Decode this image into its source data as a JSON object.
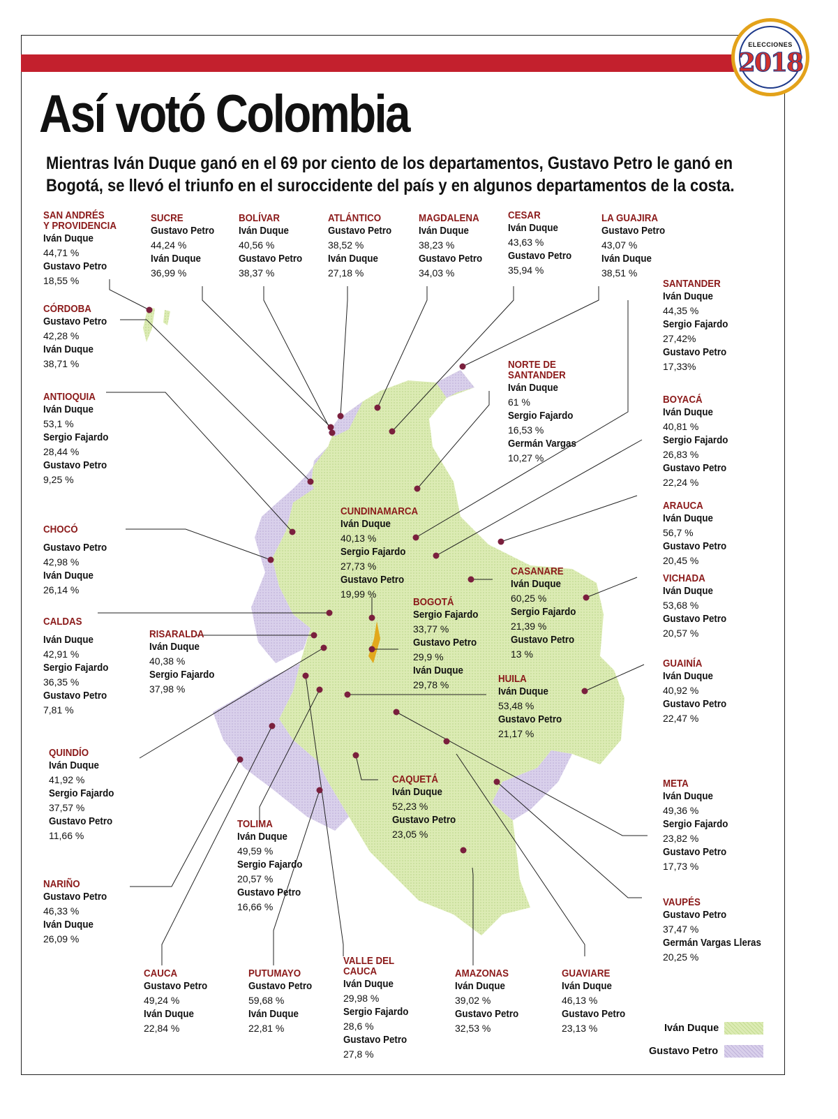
{
  "badge": {
    "label": "ELECCIONES",
    "year": "2018"
  },
  "title": "Así votó Colombia",
  "subtitle": "Mientras Iván Duque ganó en el 69 por ciento de los departamentos, Gustavo Petro le ganó en Bogotá, se llevó el triunfo en el suroccidente del país y en algunos departamentos de la costa.",
  "colors": {
    "duque": "#dcebb4",
    "petro": "#d9d0eb",
    "bogota": "#e2a81c",
    "title_red": "#8b1a1a",
    "bar_red": "#c3202d"
  },
  "legend": [
    {
      "name": "Iván Duque",
      "color": "#dcebb4"
    },
    {
      "name": "Gustavo Petro",
      "color": "#d9d0eb"
    }
  ],
  "departments": [
    {
      "name": "SAN ANDRÉS\nY PROVIDENCIA",
      "winner": "duque",
      "results": [
        {
          "c": "Iván Duque",
          "p": "44,71 %"
        },
        {
          "c": "Gustavo Petro",
          "p": "18,55 %"
        }
      ]
    },
    {
      "name": "SUCRE",
      "winner": "petro",
      "results": [
        {
          "c": "Gustavo Petro",
          "p": "44,24 %"
        },
        {
          "c": "Iván Duque",
          "p": "36,99 %"
        }
      ]
    },
    {
      "name": "BOLÍVAR",
      "winner": "duque",
      "results": [
        {
          "c": "Iván Duque",
          "p": "40,56 %"
        },
        {
          "c": "Gustavo Petro",
          "p": "38,37 %"
        }
      ]
    },
    {
      "name": "ATLÁNTICO",
      "winner": "petro",
      "results": [
        {
          "c": "Gustavo Petro",
          "p": "38,52 %"
        },
        {
          "c": "Iván Duque",
          "p": "27,18 %"
        }
      ]
    },
    {
      "name": "MAGDALENA",
      "winner": "duque",
      "results": [
        {
          "c": "Iván Duque",
          "p": "38,23 %"
        },
        {
          "c": "Gustavo Petro",
          "p": "34,03 %"
        }
      ]
    },
    {
      "name": "CESAR",
      "winner": "duque",
      "results": [
        {
          "c": "Iván Duque",
          "p": "43,63 %"
        },
        {
          "c": "Gustavo Petro",
          "p": "35,94 %"
        }
      ]
    },
    {
      "name": "LA GUAJIRA",
      "winner": "petro",
      "results": [
        {
          "c": "Gustavo Petro",
          "p": "43,07 %"
        },
        {
          "c": "Iván Duque",
          "p": "38,51 %"
        }
      ]
    },
    {
      "name": "SANTANDER",
      "winner": "duque",
      "results": [
        {
          "c": "Iván Duque",
          "p": "44,35 %"
        },
        {
          "c": "Sergio Fajardo",
          "p": "27,42%"
        },
        {
          "c": "Gustavo Petro",
          "p": "17,33%"
        }
      ]
    },
    {
      "name": "CÓRDOBA",
      "winner": "petro",
      "results": [
        {
          "c": "Gustavo Petro",
          "p": "42,28 %"
        },
        {
          "c": "Iván Duque",
          "p": "38,71 %"
        }
      ]
    },
    {
      "name": "NORTE DE\nSANTANDER",
      "winner": "duque",
      "results": [
        {
          "c": "Iván Duque",
          "p": "61 %"
        },
        {
          "c": "Sergio Fajardo",
          "p": "16,53 %"
        },
        {
          "c": "Germán Vargas",
          "p": "10,27 %"
        }
      ]
    },
    {
      "name": "ANTIOQUIA",
      "winner": "duque",
      "results": [
        {
          "c": "Iván Duque",
          "p": "53,1 %"
        },
        {
          "c": "Sergio Fajardo",
          "p": "28,44 %"
        },
        {
          "c": "Gustavo Petro",
          "p": "9,25 %"
        }
      ]
    },
    {
      "name": "BOYACÁ",
      "winner": "duque",
      "results": [
        {
          "c": "Iván Duque",
          "p": "40,81 %"
        },
        {
          "c": "Sergio Fajardo",
          "p": "26,83 %"
        },
        {
          "c": "Gustavo Petro",
          "p": "22,24 %"
        }
      ]
    },
    {
      "name": "CUNDINAMARCA",
      "winner": "duque",
      "results": [
        {
          "c": "Iván Duque",
          "p": "40,13 %"
        },
        {
          "c": "Sergio Fajardo",
          "p": "27,73 %"
        },
        {
          "c": "Gustavo Petro",
          "p": "19,99 %"
        }
      ]
    },
    {
      "name": "ARAUCA",
      "winner": "duque",
      "results": [
        {
          "c": "Iván Duque",
          "p": "56,7 %"
        },
        {
          "c": "Gustavo Petro",
          "p": "20,45 %"
        }
      ]
    },
    {
      "name": "CHOCÓ",
      "winner": "petro",
      "results": [
        {
          "c": "Gustavo Petro",
          "p": "42,98 %"
        },
        {
          "c": "Iván Duque",
          "p": "26,14 %"
        }
      ]
    },
    {
      "name": "CASANARE",
      "winner": "duque",
      "results": [
        {
          "c": "Iván Duque",
          "p": "60,25 %"
        },
        {
          "c": "Sergio Fajardo",
          "p": "21,39 %"
        },
        {
          "c": "Gustavo Petro",
          "p": "13 %"
        }
      ]
    },
    {
      "name": "VICHADA",
      "winner": "duque",
      "results": [
        {
          "c": "Iván Duque",
          "p": "53,68 %"
        },
        {
          "c": "Gustavo Petro",
          "p": "20,57 %"
        }
      ]
    },
    {
      "name": "BOGOTÁ",
      "winner": "petro",
      "results": [
        {
          "c": "Sergio Fajardo",
          "p": "33,77 %"
        },
        {
          "c": "Gustavo Petro",
          "p": "29,9 %"
        },
        {
          "c": "Iván Duque",
          "p": "29,78 %"
        }
      ]
    },
    {
      "name": "CALDAS",
      "winner": "duque",
      "results": [
        {
          "c": "Iván Duque",
          "p": "42,91 %"
        },
        {
          "c": "Sergio Fajardo",
          "p": "36,35 %"
        },
        {
          "c": "Gustavo Petro",
          "p": "7,81 %"
        }
      ]
    },
    {
      "name": "RISARALDA",
      "winner": "duque",
      "results": [
        {
          "c": "Iván Duque",
          "p": "40,38 %"
        },
        {
          "c": "Sergio Fajardo",
          "p": "37,98 %"
        }
      ]
    },
    {
      "name": "GUAINÍA",
      "winner": "duque",
      "results": [
        {
          "c": "Iván Duque",
          "p": "40,92 %"
        },
        {
          "c": "Gustavo Petro",
          "p": "22,47 %"
        }
      ]
    },
    {
      "name": "HUILA",
      "winner": "duque",
      "results": [
        {
          "c": "Iván Duque",
          "p": "53,48 %"
        },
        {
          "c": "Gustavo Petro",
          "p": "21,17 %"
        }
      ]
    },
    {
      "name": "QUINDÍO",
      "winner": "duque",
      "results": [
        {
          "c": "Iván Duque",
          "p": "41,92 %"
        },
        {
          "c": "Sergio Fajardo",
          "p": "37,57 %"
        },
        {
          "c": "Gustavo Petro",
          "p": "11,66 %"
        }
      ]
    },
    {
      "name": "CAQUETÁ",
      "winner": "duque",
      "results": [
        {
          "c": "Iván Duque",
          "p": "52,23 %"
        },
        {
          "c": "Gustavo Petro",
          "p": "23,05 %"
        }
      ]
    },
    {
      "name": "META",
      "winner": "duque",
      "results": [
        {
          "c": "Iván Duque",
          "p": "49,36 %"
        },
        {
          "c": "Sergio Fajardo",
          "p": "23,82 %"
        },
        {
          "c": "Gustavo Petro",
          "p": "17,73 %"
        }
      ]
    },
    {
      "name": "TOLIMA",
      "winner": "duque",
      "results": [
        {
          "c": "Iván Duque",
          "p": "49,59 %"
        },
        {
          "c": "Sergio Fajardo",
          "p": "20,57 %"
        },
        {
          "c": "Gustavo Petro",
          "p": "16,66 %"
        }
      ]
    },
    {
      "name": "NARIÑO",
      "winner": "petro",
      "results": [
        {
          "c": "Gustavo Petro",
          "p": "46,33 %"
        },
        {
          "c": "Iván Duque",
          "p": "26,09 %"
        }
      ]
    },
    {
      "name": "VAUPÉS",
      "winner": "petro",
      "results": [
        {
          "c": "Gustavo Petro",
          "p": "37,47 %"
        },
        {
          "c": "Germán Vargas Lleras",
          "p": "20,25 %"
        }
      ]
    },
    {
      "name": "CAUCA",
      "winner": "petro",
      "results": [
        {
          "c": "Gustavo Petro",
          "p": "49,24 %"
        },
        {
          "c": "Iván Duque",
          "p": "22,84 %"
        }
      ]
    },
    {
      "name": "PUTUMAYO",
      "winner": "petro",
      "results": [
        {
          "c": "Gustavo Petro",
          "p": "59,68 %"
        },
        {
          "c": "Iván Duque",
          "p": "22,81 %"
        }
      ]
    },
    {
      "name": "VALLE DEL\nCAUCA",
      "winner": "duque",
      "results": [
        {
          "c": "Iván Duque",
          "p": "29,98 %"
        },
        {
          "c": "Sergio Fajardo",
          "p": "28,6 %"
        },
        {
          "c": "Gustavo Petro",
          "p": "27,8 %"
        }
      ]
    },
    {
      "name": "AMAZONAS",
      "winner": "duque",
      "results": [
        {
          "c": "Iván Duque",
          "p": "39,02 %"
        },
        {
          "c": "Gustavo Petro",
          "p": "32,53 %"
        }
      ]
    },
    {
      "name": "GUAVIARE",
      "winner": "duque",
      "results": [
        {
          "c": "Iván Duque",
          "p": "46,13 %"
        },
        {
          "c": "Gustavo Petro",
          "p": "23,13 %"
        }
      ]
    }
  ]
}
